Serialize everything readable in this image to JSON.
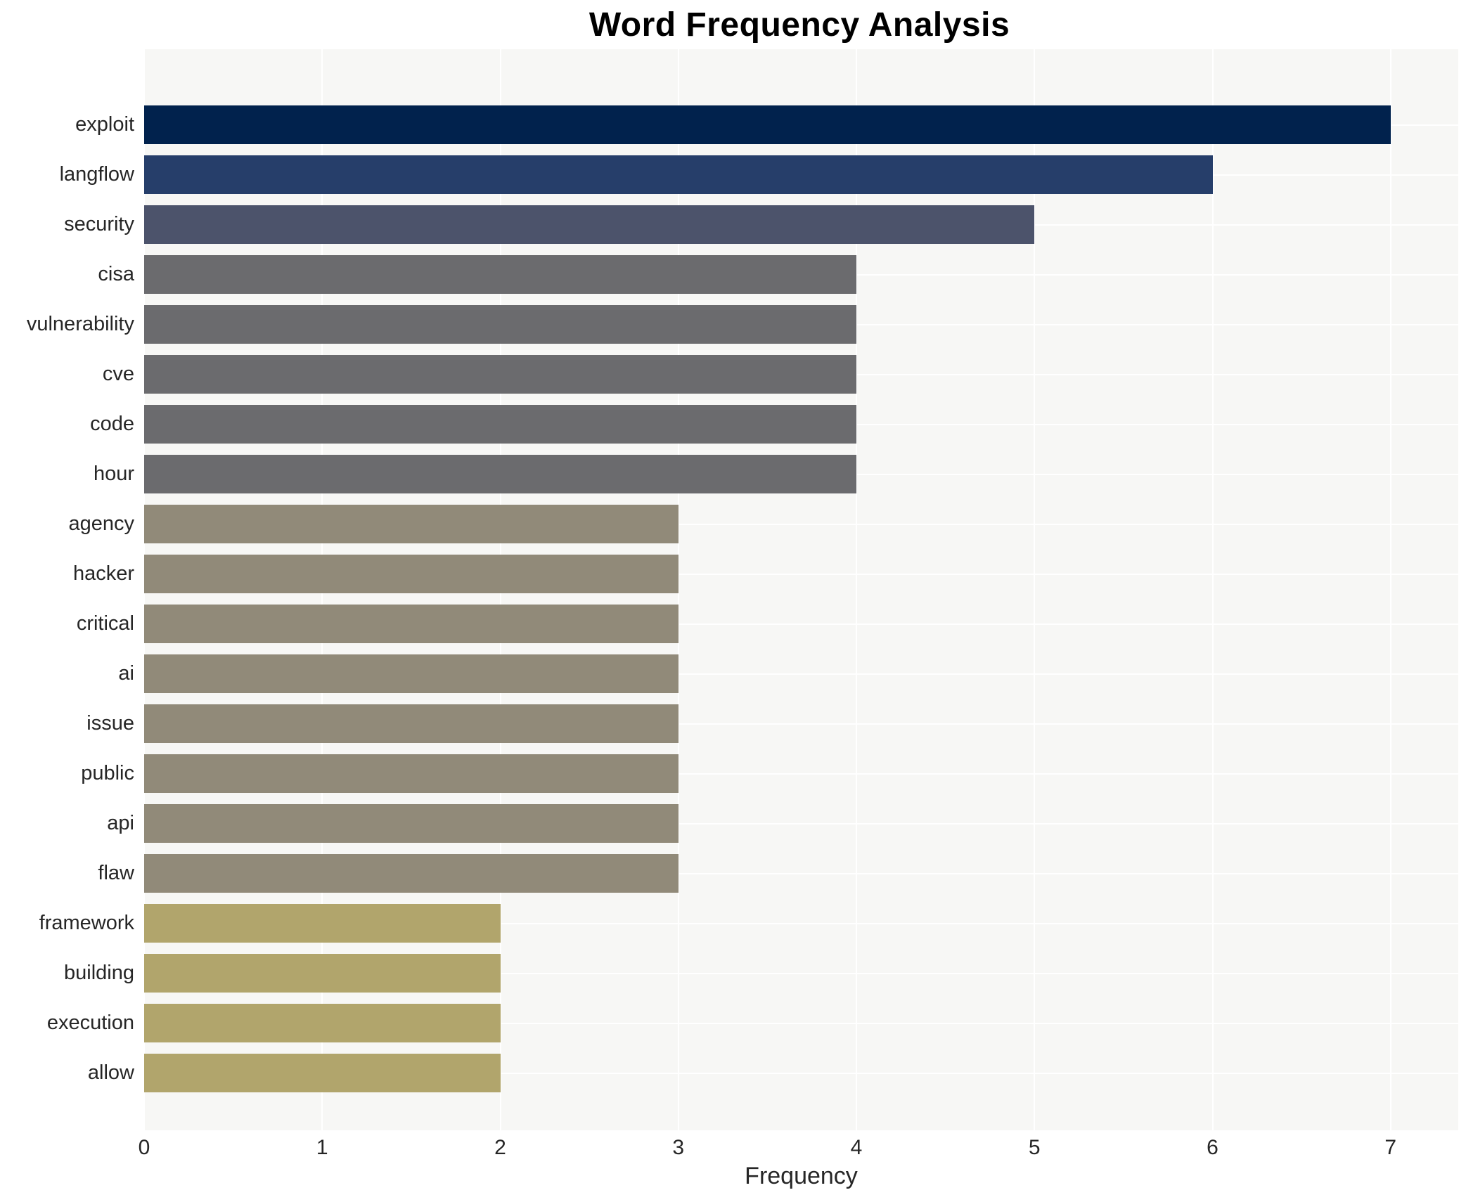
{
  "chart_data": {
    "type": "bar",
    "orientation": "horizontal",
    "title": "Word Frequency Analysis",
    "xlabel": "Frequency",
    "ylabel": "",
    "categories": [
      "exploit",
      "langflow",
      "security",
      "cisa",
      "vulnerability",
      "cve",
      "code",
      "hour",
      "agency",
      "hacker",
      "critical",
      "ai",
      "issue",
      "public",
      "api",
      "flaw",
      "framework",
      "building",
      "execution",
      "allow"
    ],
    "values": [
      7,
      6,
      5,
      4,
      4,
      4,
      4,
      4,
      3,
      3,
      3,
      3,
      3,
      3,
      3,
      3,
      2,
      2,
      2,
      2
    ],
    "bar_colors": [
      "#01224d",
      "#263e6a",
      "#4c536b",
      "#6b6b6e",
      "#6b6b6e",
      "#6b6b6e",
      "#6b6b6e",
      "#6b6b6e",
      "#918a79",
      "#918a79",
      "#918a79",
      "#918a79",
      "#918a79",
      "#918a79",
      "#918a79",
      "#918a79",
      "#b1a56c",
      "#b1a56c",
      "#b1a56c",
      "#b1a56c"
    ],
    "x_ticks": [
      0,
      1,
      2,
      3,
      4,
      5,
      6,
      7
    ],
    "xlim": [
      0,
      7.38
    ],
    "grid": true,
    "legend": "none",
    "plot_background": "#f7f7f5",
    "gridline_color": "#ffffff",
    "text_color": "#262626",
    "title_color": "#000000"
  }
}
